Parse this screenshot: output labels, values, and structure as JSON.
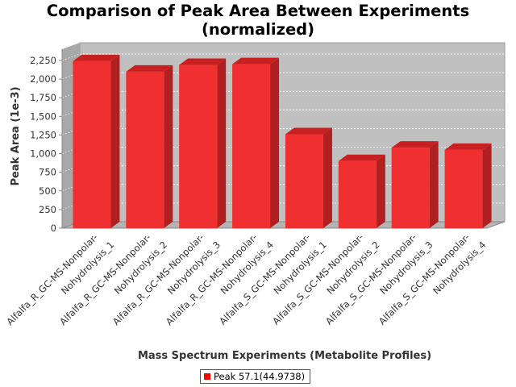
{
  "chart_data": {
    "type": "bar",
    "title_lines": [
      "Comparison of Peak Area Between Experiments",
      "(normalized)"
    ],
    "xlabel": "Mass Spectrum Experiments (Metabolite Profiles)",
    "ylabel": "Peak Area (1e-3)",
    "ylim": [
      0,
      2250
    ],
    "yticks": [
      0,
      250,
      500,
      750,
      1000,
      1250,
      1500,
      1750,
      2000,
      2250
    ],
    "ytick_labels": [
      "0",
      "250",
      "500",
      "750",
      "1,000",
      "1,250",
      "1,500",
      "1,750",
      "2,000",
      "2,250"
    ],
    "grid": true,
    "legend_position": "bottom-center",
    "categories": [
      [
        "Alfalfa_R_GC-MS-Nonpolar-",
        "Nohydrolysis_1"
      ],
      [
        "Alfalfa_R_GC-MS-Nonpolar-",
        "Nohydrolysis_2"
      ],
      [
        "Alfalfa_R_GC-MS-Nonpolar-",
        "Nohydrolysis_3"
      ],
      [
        "Alfalfa_R_GC-MS-Nonpolar-",
        "Nohydrolysis_4"
      ],
      [
        "Alfalfa_S_GC-MS-Nonpolar-",
        "Nohydrolysis_1"
      ],
      [
        "Alfalfa_S_GC-MS-Nonpolar-",
        "Nohydrolysis_2"
      ],
      [
        "Alfalfa_S_GC-MS-Nonpolar-",
        "Nohydrolysis_3"
      ],
      [
        "Alfalfa_S_GC-MS-Nonpolar-",
        "Nohydrolysis_4"
      ]
    ],
    "series": [
      {
        "name": "Peak 57.1(44.9738)",
        "color": "#ff0000",
        "values": [
          2240,
          2100,
          2190,
          2200,
          1260,
          900,
          1080,
          1050
        ]
      }
    ]
  }
}
